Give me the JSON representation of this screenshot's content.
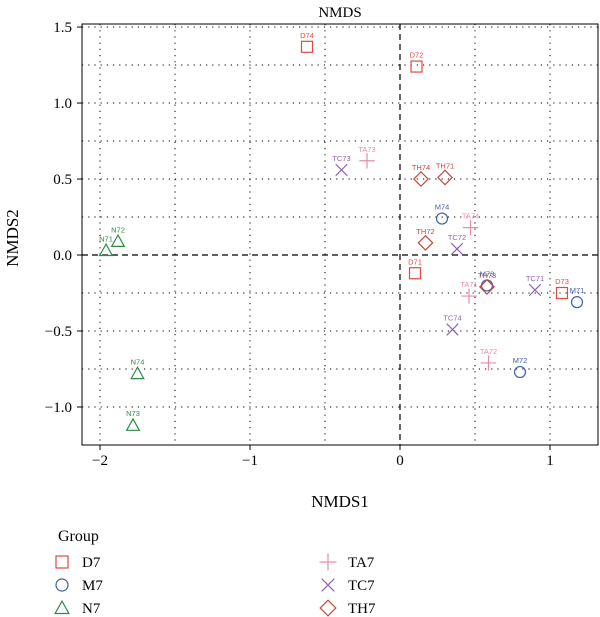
{
  "chart_data": {
    "type": "scatter",
    "title": "NMDS",
    "xlabel": "NMDS1",
    "ylabel": "NMDS2",
    "xlim": [
      -2.12,
      1.32
    ],
    "ylim": [
      -1.25,
      1.52
    ],
    "xticks": [
      -2,
      -1,
      0,
      1
    ],
    "yticks": [
      1.5,
      1.0,
      0.5,
      0.0,
      -0.5,
      -1.0
    ],
    "ytick_labels": [
      "1.5",
      "1.0",
      "0.5",
      "0.0",
      "−0.5",
      "−1.0"
    ],
    "xtick_labels": [
      "−2",
      "−1",
      "0",
      "1"
    ],
    "grid": true,
    "reference_lines": {
      "x": 0,
      "y": 0
    },
    "legend": {
      "title": "Group",
      "placement": "bottom",
      "entries": [
        {
          "name": "D7",
          "marker": "square",
          "color": "#e04a43"
        },
        {
          "name": "M7",
          "marker": "circle",
          "color": "#3f5fae"
        },
        {
          "name": "N7",
          "marker": "triangle",
          "color": "#2f8a47"
        },
        {
          "name": "TA7",
          "marker": "plus",
          "color": "#e58fa6"
        },
        {
          "name": "TC7",
          "marker": "x",
          "color": "#8f62b2"
        },
        {
          "name": "TH7",
          "marker": "diamond",
          "color": "#c4473a"
        }
      ]
    },
    "series": [
      {
        "name": "D7",
        "points": [
          {
            "label": "D74",
            "x": -0.62,
            "y": 1.37
          },
          {
            "label": "D72",
            "x": 0.11,
            "y": 1.24
          },
          {
            "label": "D71",
            "x": 0.1,
            "y": -0.12
          },
          {
            "label": "D73",
            "x": 1.08,
            "y": -0.25
          }
        ]
      },
      {
        "name": "M7",
        "points": [
          {
            "label": "M74",
            "x": 0.28,
            "y": 0.24
          },
          {
            "label": "M73",
            "x": 0.58,
            "y": -0.2
          },
          {
            "label": "M71",
            "x": 1.18,
            "y": -0.31
          },
          {
            "label": "M72",
            "x": 0.8,
            "y": -0.77
          }
        ]
      },
      {
        "name": "N7",
        "points": [
          {
            "label": "N72",
            "x": -1.88,
            "y": 0.09
          },
          {
            "label": "N71",
            "x": -1.96,
            "y": 0.03
          },
          {
            "label": "N74",
            "x": -1.75,
            "y": -0.78
          },
          {
            "label": "N73",
            "x": -1.78,
            "y": -1.12
          }
        ]
      },
      {
        "name": "TA7",
        "points": [
          {
            "label": "TA73",
            "x": -0.22,
            "y": 0.62
          },
          {
            "label": "TA74",
            "x": 0.47,
            "y": 0.18
          },
          {
            "label": "TA71",
            "x": 0.46,
            "y": -0.27
          },
          {
            "label": "TA72",
            "x": 0.59,
            "y": -0.71
          }
        ]
      },
      {
        "name": "TC7",
        "points": [
          {
            "label": "TC73",
            "x": -0.39,
            "y": 0.56
          },
          {
            "label": "TC72",
            "x": 0.38,
            "y": 0.04
          },
          {
            "label": "TC71",
            "x": 0.9,
            "y": -0.23
          },
          {
            "label": "TC74",
            "x": 0.35,
            "y": -0.49
          }
        ]
      },
      {
        "name": "TH7",
        "points": [
          {
            "label": "TH74",
            "x": 0.14,
            "y": 0.5
          },
          {
            "label": "TH71",
            "x": 0.3,
            "y": 0.51
          },
          {
            "label": "TH72",
            "x": 0.17,
            "y": 0.08
          },
          {
            "label": "TH73",
            "x": 0.58,
            "y": -0.21
          }
        ]
      }
    ]
  }
}
